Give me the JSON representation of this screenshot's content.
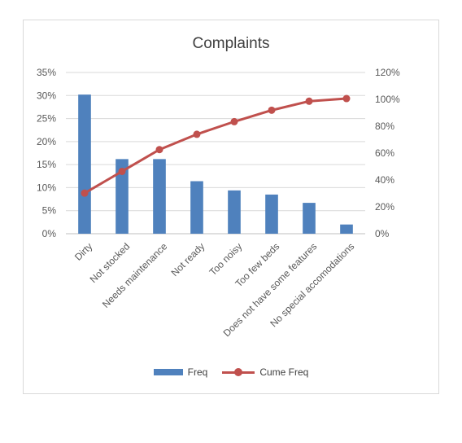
{
  "chart_data": {
    "type": "bar",
    "title": "Complaints",
    "categories": [
      "Dirty",
      "Not stocked",
      "Needs maintenance",
      "Not ready",
      "Too noisy",
      "Too few beds",
      "Does not have some features",
      "No special accomodations"
    ],
    "series": [
      {
        "name": "Freq",
        "type": "bar",
        "axis": "left",
        "color": "#4F81BD",
        "values": [
          0.302,
          0.162,
          0.162,
          0.114,
          0.094,
          0.085,
          0.067,
          0.02
        ]
      },
      {
        "name": "Cume Freq",
        "type": "line",
        "axis": "right",
        "color": "#C0504D",
        "values": [
          0.302,
          0.464,
          0.626,
          0.74,
          0.834,
          0.919,
          0.986,
          1.006
        ]
      }
    ],
    "y_left": {
      "lim": [
        0,
        0.35
      ],
      "ticks": [
        "0%",
        "5%",
        "10%",
        "15%",
        "20%",
        "25%",
        "30%",
        "35%"
      ]
    },
    "y_right": {
      "lim": [
        0,
        1.2
      ],
      "ticks": [
        "0%",
        "20%",
        "40%",
        "60%",
        "80%",
        "100%",
        "120%"
      ]
    },
    "grid": true,
    "legend_position": "bottom"
  }
}
